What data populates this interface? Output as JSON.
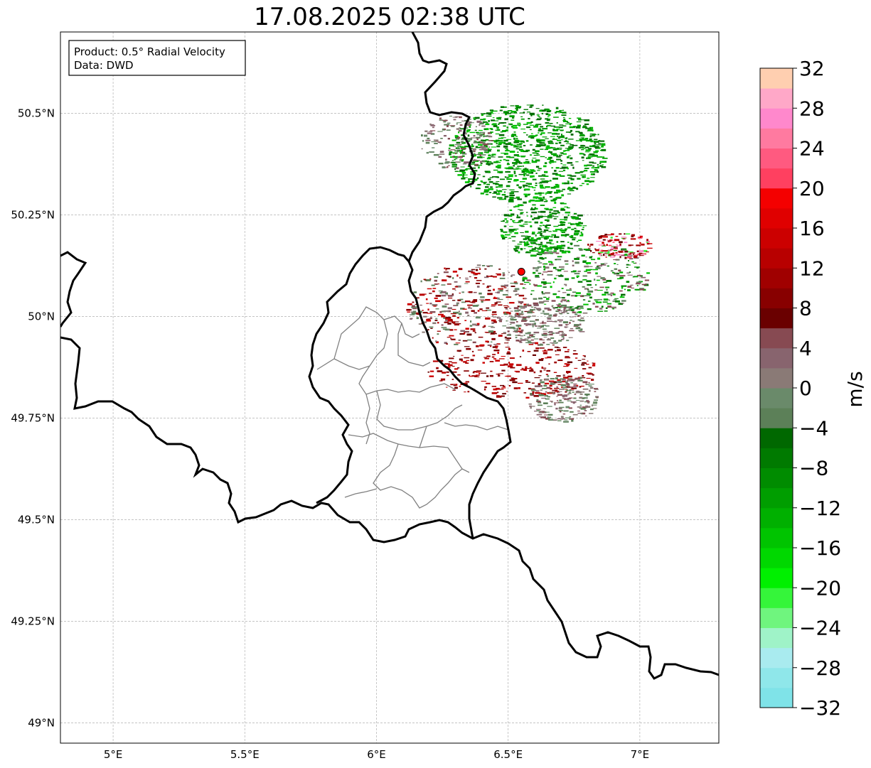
{
  "title": "17.08.2025 02:38 UTC",
  "info_box": {
    "line1": "Product: 0.5° Radial Velocity",
    "line2": "Data: DWD"
  },
  "map": {
    "lon_range": [
      4.8,
      7.3
    ],
    "lat_range": [
      48.95,
      50.7
    ],
    "x_ticks": [
      {
        "value": 5.0,
        "label": "5°E"
      },
      {
        "value": 5.5,
        "label": "5.5°E"
      },
      {
        "value": 6.0,
        "label": "6°E"
      },
      {
        "value": 6.5,
        "label": "6.5°E"
      },
      {
        "value": 7.0,
        "label": "7°E"
      }
    ],
    "y_ticks": [
      {
        "value": 49.0,
        "label": "49°N"
      },
      {
        "value": 49.25,
        "label": "49.25°N"
      },
      {
        "value": 49.5,
        "label": "49.5°N"
      },
      {
        "value": 49.75,
        "label": "49.75°N"
      },
      {
        "value": 50.0,
        "label": "50°N"
      },
      {
        "value": 50.25,
        "label": "50.25°N"
      },
      {
        "value": 50.5,
        "label": "50.5°N"
      }
    ],
    "radar_site": {
      "lon": 6.55,
      "lat": 50.11,
      "color": "#ff0000"
    },
    "gridlines": true
  },
  "colorbar": {
    "label": "m/s",
    "range": [
      -32,
      32
    ],
    "tick_values": [
      -32,
      -28,
      -24,
      -20,
      -16,
      -12,
      -8,
      -4,
      0,
      4,
      8,
      12,
      16,
      20,
      24,
      28,
      32
    ],
    "tick_labels": [
      "−32",
      "−28",
      "−24",
      "−20",
      "−16",
      "−12",
      "−8",
      "−4",
      "0",
      "4",
      "8",
      "12",
      "16",
      "20",
      "24",
      "28",
      "32"
    ],
    "colors": [
      "#7fe3e8",
      "#8fe7ea",
      "#a9ebef",
      "#9ff3c8",
      "#6ff57e",
      "#35f53a",
      "#00f000",
      "#00d800",
      "#00c400",
      "#00b000",
      "#009e00",
      "#008c00",
      "#007a00",
      "#006800",
      "#5c8058",
      "#6a8a6a",
      "#8a7a76",
      "#88646e",
      "#874a52",
      "#6a0000",
      "#880000",
      "#a00000",
      "#b80000",
      "#cc0000",
      "#e00000",
      "#f40000",
      "#ff4060",
      "#ff5a80",
      "#ff7aa0",
      "#ff88cc",
      "#ffa8c8",
      "#ffcfb0"
    ]
  }
}
